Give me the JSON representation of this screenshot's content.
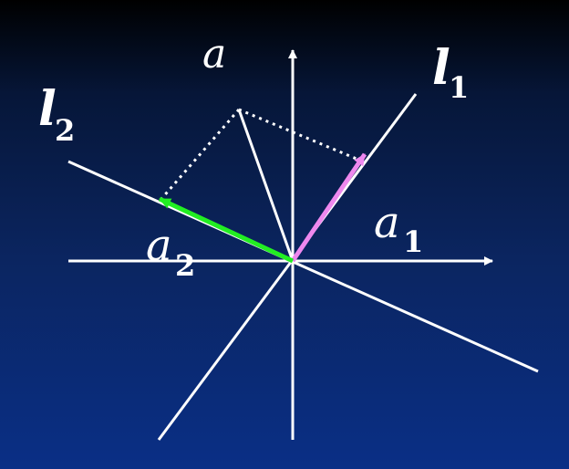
{
  "labels": {
    "a": "a",
    "l1": "l",
    "l1_sub": "1",
    "l2": "l",
    "l2_sub": "2",
    "a1": "a",
    "a1_sub": "1",
    "a2": "a",
    "a2_sub": "2"
  },
  "colors": {
    "axes": "#ffffff",
    "lines": "#ffffff",
    "projection_a1": "#ee88ee",
    "projection_a2": "#22ee22",
    "dotted_guides": "#ffffff"
  }
}
